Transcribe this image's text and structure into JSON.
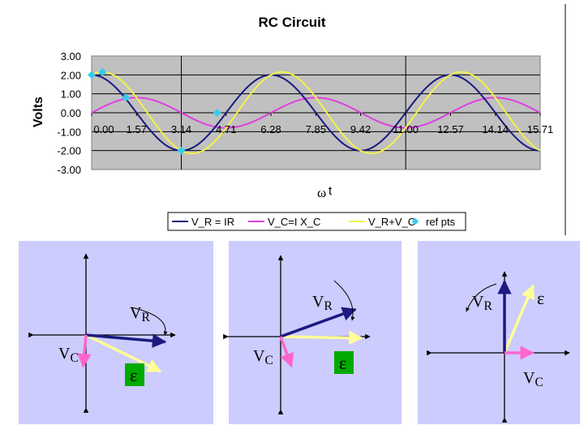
{
  "chart_data": {
    "type": "line",
    "title": "RC Circuit",
    "ylabel": "Volts",
    "xlabel_omega": "ω",
    "xlabel_t": "t",
    "ylim": [
      -3,
      3
    ],
    "xlim": [
      0,
      15.71
    ],
    "y_ticks": [
      "3.00",
      "2.00",
      "1.00",
      "0.00",
      "-1.00",
      "-2.00",
      "-3.00"
    ],
    "x_ticks": [
      {
        "v": 0.0,
        "label": "0.00"
      },
      {
        "v": 1.57,
        "label": "1.57"
      },
      {
        "v": 3.14,
        "label": "3.14"
      },
      {
        "v": 4.71,
        "label": "4.71"
      },
      {
        "v": 6.28,
        "label": "6.28"
      },
      {
        "v": 7.85,
        "label": "7.85"
      },
      {
        "v": 9.42,
        "label": "9.42"
      },
      {
        "v": 11.0,
        "label": "11.00"
      },
      {
        "v": 12.57,
        "label": "12.57"
      },
      {
        "v": 14.14,
        "label": "14.14"
      },
      {
        "v": 15.71,
        "label": "15.71"
      }
    ],
    "vertical_markers": [
      3.14,
      11.0
    ],
    "series": [
      {
        "name": "V_R = IR",
        "color": "#1a1a80",
        "amplitude": 2.0,
        "phase": 0.0
      },
      {
        "name": "V_C=I X_C",
        "color": "#e040e0",
        "amplitude": 0.8,
        "phase": -1.5708
      },
      {
        "name": "V_R+V_C",
        "color": "#f2f24a",
        "amplitude": 2.154,
        "phase": -0.3805
      }
    ],
    "ref_points": {
      "name": "ref pts",
      "color": "#33ccee",
      "points": [
        [
          0.0,
          2.0
        ],
        [
          0.38,
          2.15
        ],
        [
          1.2,
          0.8
        ],
        [
          3.14,
          -2.0
        ],
        [
          4.4,
          0.0
        ]
      ]
    },
    "grid": "horizontal",
    "legend_position": "bottom"
  },
  "phasors": {
    "labels": {
      "vr_main": "V",
      "vr_sub": "R",
      "vc_main": "V",
      "vc_sub": "C",
      "emf": "ε"
    },
    "colors": {
      "panel_bg": "#ccccff",
      "vr": "#1a1a80",
      "vc": "#ff66cc",
      "emf": "#ffff99",
      "emf_label_bg": "#00aa00"
    },
    "panels": [
      {
        "vr_angle_deg": -5,
        "vr_len": 0.98,
        "vc_angle_deg": -95,
        "vc_len": 0.39,
        "emf_angle_deg": -26,
        "emf_len": 1.02
      },
      {
        "vr_angle_deg": 20,
        "vr_len": 0.98,
        "vc_angle_deg": -70,
        "vc_len": 0.39,
        "emf_angle_deg": -1,
        "emf_len": 1.0
      },
      {
        "vr_angle_deg": 90,
        "vr_len": 0.98,
        "vc_angle_deg": 0,
        "vc_len": 0.39,
        "emf_angle_deg": 67,
        "emf_len": 1.0
      }
    ]
  }
}
